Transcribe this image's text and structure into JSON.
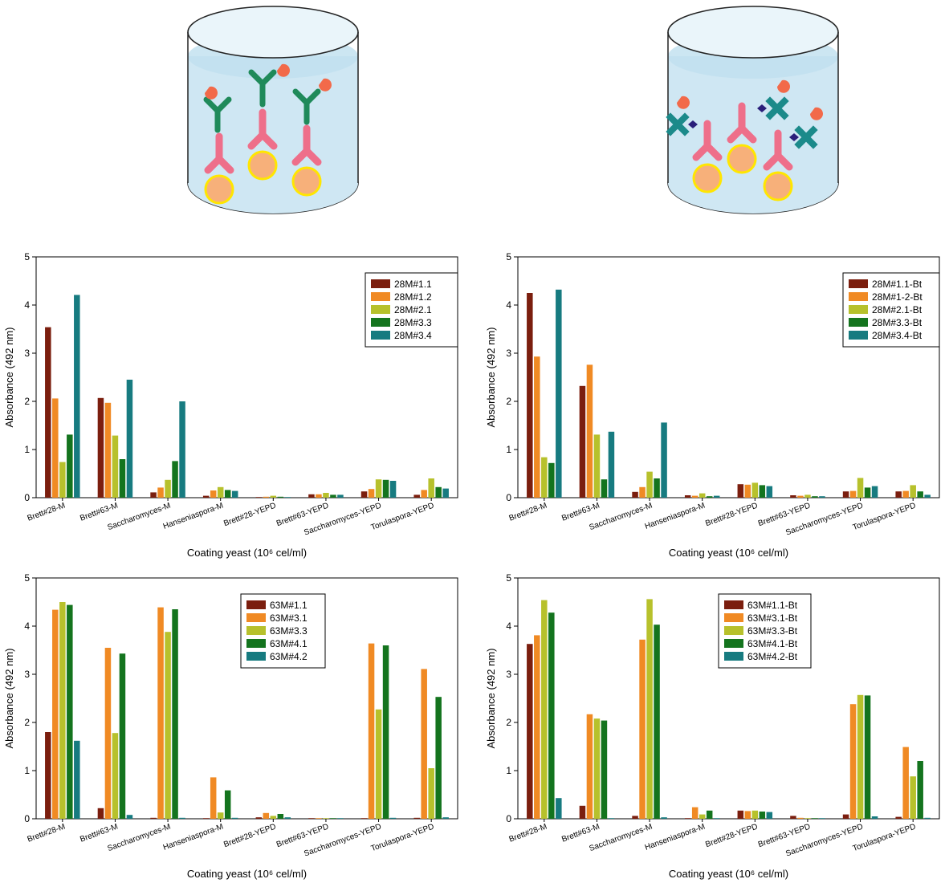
{
  "chart_data": [
    {
      "type": "bar",
      "xlabel": "Coating yeast (10⁶ cel/ml)",
      "ylabel": "Absorbance (492 nm)",
      "ylim": [
        0,
        5
      ],
      "yticks": [
        "0",
        "1",
        "2",
        "3",
        "4",
        "5"
      ],
      "legend_position": "top-right",
      "categories": [
        "Brett#28-M",
        "Brett#63-M",
        "Saccharomyces-M",
        "Hanseniaspora-M",
        "Brett#28-YEPD",
        "Brett#63-YEPD",
        "Saccharomyces-YEPD",
        "Torulaspora-YEPD"
      ],
      "series": [
        {
          "name": "28M#1.1",
          "color": "#7b1e0e",
          "values": [
            3.54,
            2.07,
            0.11,
            0.04,
            0.01,
            0.07,
            0.13,
            0.06
          ]
        },
        {
          "name": "28M#1.2",
          "color": "#f08a24",
          "values": [
            2.06,
            1.97,
            0.21,
            0.15,
            0.02,
            0.07,
            0.18,
            0.16
          ]
        },
        {
          "name": "28M#2.1",
          "color": "#b7c12c",
          "values": [
            0.74,
            1.29,
            0.37,
            0.22,
            0.04,
            0.1,
            0.38,
            0.4
          ]
        },
        {
          "name": "28M#3.3",
          "color": "#14741e",
          "values": [
            1.31,
            0.8,
            0.76,
            0.16,
            0.02,
            0.06,
            0.37,
            0.22
          ]
        },
        {
          "name": "28M#3.4",
          "color": "#177b80",
          "values": [
            4.21,
            2.45,
            2.0,
            0.14,
            0.01,
            0.06,
            0.35,
            0.19
          ]
        }
      ]
    },
    {
      "type": "bar",
      "xlabel": "Coating yeast (10⁶ cel/ml)",
      "ylabel": "Absorbance (492 nm)",
      "ylim": [
        0,
        5
      ],
      "yticks": [
        "0",
        "1",
        "2",
        "3",
        "4",
        "5"
      ],
      "legend_position": "top-right",
      "categories": [
        "Brett#28-M",
        "Brett#63-M",
        "Saccharomyces-M",
        "Hanseniaspora-M",
        "Brett#28-YEPD",
        "Brett#63-YEPD",
        "Saccharomyces-YEPD",
        "Torulaspora-YEPD"
      ],
      "series": [
        {
          "name": "28M#1.1-Bt",
          "color": "#7b1e0e",
          "values": [
            4.25,
            2.32,
            0.12,
            0.05,
            0.28,
            0.05,
            0.13,
            0.13
          ]
        },
        {
          "name": "28M#1-2-Bt",
          "color": "#f08a24",
          "values": [
            2.93,
            2.76,
            0.22,
            0.04,
            0.27,
            0.04,
            0.14,
            0.14
          ]
        },
        {
          "name": "28M#2.1-Bt",
          "color": "#b7c12c",
          "values": [
            0.84,
            1.31,
            0.54,
            0.09,
            0.31,
            0.06,
            0.41,
            0.26
          ]
        },
        {
          "name": "28M#3.3-Bt",
          "color": "#14741e",
          "values": [
            0.72,
            0.38,
            0.4,
            0.03,
            0.26,
            0.03,
            0.21,
            0.13
          ]
        },
        {
          "name": "28M#3.4-Bt",
          "color": "#177b80",
          "values": [
            4.32,
            1.37,
            1.56,
            0.04,
            0.24,
            0.03,
            0.24,
            0.06
          ]
        }
      ]
    },
    {
      "type": "bar",
      "xlabel": "Coating yeast (10⁶ cel/ml)",
      "ylabel": "Absorbance (492 nm)",
      "ylim": [
        0,
        5
      ],
      "yticks": [
        "0",
        "1",
        "2",
        "3",
        "4",
        "5"
      ],
      "legend_position": "top-center",
      "categories": [
        "Brett#28-M",
        "Brett#63-M",
        "Saccharomyces-M",
        "Hanseniaspora-M",
        "Brett#28-YEPD",
        "Brett#63-YEPD",
        "Saccharomyces-YEPD",
        "Torulaspora-YEPD"
      ],
      "series": [
        {
          "name": "63M#1.1",
          "color": "#7b1e0e",
          "values": [
            1.8,
            0.22,
            0.02,
            0.01,
            0.03,
            0.01,
            0.01,
            0.02
          ]
        },
        {
          "name": "63M#3.1",
          "color": "#f08a24",
          "values": [
            4.34,
            3.55,
            4.39,
            0.86,
            0.12,
            0.01,
            3.64,
            3.11
          ]
        },
        {
          "name": "63M#3.3",
          "color": "#b7c12c",
          "values": [
            4.5,
            1.78,
            3.88,
            0.13,
            0.06,
            0.01,
            2.27,
            1.05
          ]
        },
        {
          "name": "63M#4.1",
          "color": "#14741e",
          "values": [
            4.44,
            3.43,
            4.35,
            0.59,
            0.1,
            0.01,
            3.6,
            2.53
          ]
        },
        {
          "name": "63M#4.2",
          "color": "#177b80",
          "values": [
            1.62,
            0.08,
            0.02,
            0.02,
            0.03,
            0.01,
            0.02,
            0.03
          ]
        }
      ]
    },
    {
      "type": "bar",
      "xlabel": "Coating yeast (10⁶ cel/ml)",
      "ylabel": "Absorbance (492 nm)",
      "ylim": [
        0,
        5
      ],
      "yticks": [
        "0",
        "1",
        "2",
        "3",
        "4",
        "5"
      ],
      "legend_position": "top-center",
      "categories": [
        "Brett#28-M",
        "Brett#63-M",
        "Saccharomyces-M",
        "Hanseniaspora-M",
        "Brett#28-YEPD",
        "Brett#63-YEPD",
        "Saccharomyces-YEPD",
        "Torulaspora-YEPD"
      ],
      "series": [
        {
          "name": "63M#1.1-Bt",
          "color": "#7b1e0e",
          "values": [
            3.63,
            0.27,
            0.06,
            0.01,
            0.17,
            0.06,
            0.09,
            0.04
          ]
        },
        {
          "name": "63M#3.1-Bt",
          "color": "#f08a24",
          "values": [
            3.81,
            2.17,
            3.72,
            0.24,
            0.16,
            0.02,
            2.38,
            1.49
          ]
        },
        {
          "name": "63M#3.3-Bt",
          "color": "#b7c12c",
          "values": [
            4.54,
            2.08,
            4.56,
            0.09,
            0.17,
            0.01,
            2.57,
            0.88
          ]
        },
        {
          "name": "63M#4.1-Bt",
          "color": "#14741e",
          "values": [
            4.28,
            2.04,
            4.03,
            0.17,
            0.15,
            0.01,
            2.56,
            1.2
          ]
        },
        {
          "name": "63M#4.2-Bt",
          "color": "#177b80",
          "values": [
            0.43,
            0.01,
            0.03,
            0.01,
            0.14,
            0.01,
            0.05,
            0.02
          ]
        }
      ]
    }
  ]
}
